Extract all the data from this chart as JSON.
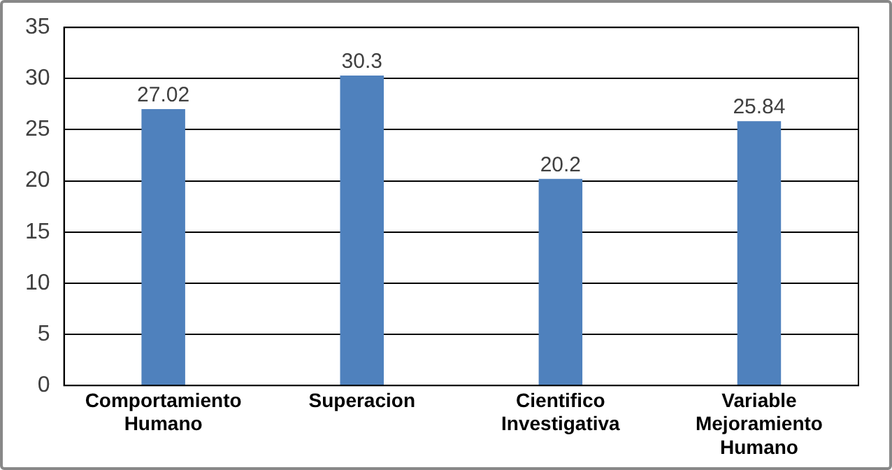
{
  "chart_data": {
    "type": "bar",
    "categories": [
      "Comportamiento Humano",
      "Superacion",
      "Cientifico Investigativa",
      "Variable Mejoramiento Humano"
    ],
    "values": [
      27.02,
      30.3,
      20.2,
      25.84
    ],
    "color": "#4f81bd",
    "ylim": [
      0,
      35
    ],
    "yticks": [
      0,
      5,
      10,
      15,
      20,
      25,
      30,
      35
    ],
    "grid": "y",
    "data_labels": true,
    "legend": false
  }
}
